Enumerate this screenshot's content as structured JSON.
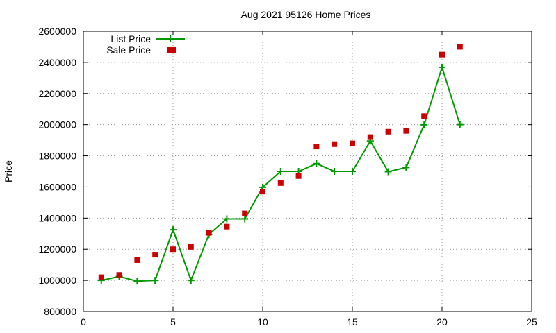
{
  "chart_data": {
    "type": "line",
    "title": "Aug 2021 95126 Home Prices",
    "xlabel": "",
    "ylabel": "Price",
    "xlim": [
      0,
      25
    ],
    "ylim": [
      800000,
      2600000
    ],
    "x_ticks": [
      0,
      5,
      10,
      15,
      20,
      25
    ],
    "y_ticks": [
      800000,
      1000000,
      1200000,
      1400000,
      1600000,
      1800000,
      2000000,
      2200000,
      2400000,
      2600000
    ],
    "grid": true,
    "legend_position": "top-left",
    "series": [
      {
        "name": "List Price",
        "style": "line-plus",
        "color": "#009900",
        "x": [
          1,
          2,
          3,
          4,
          5,
          6,
          7,
          8,
          9,
          10,
          11,
          12,
          13,
          14,
          15,
          16,
          17,
          18,
          19,
          20,
          21
        ],
        "values": [
          1000000,
          1025000,
          995000,
          1000000,
          1325000,
          1000000,
          1295000,
          1395000,
          1395000,
          1598000,
          1700000,
          1700000,
          1750000,
          1700000,
          1700000,
          1895000,
          1698000,
          1725000,
          1999000,
          2369000,
          2000000
        ]
      },
      {
        "name": "Sale Price",
        "style": "square-points",
        "color": "#cc0000",
        "x": [
          1,
          2,
          3,
          4,
          5,
          5,
          6,
          7,
          8,
          9,
          10,
          11,
          12,
          13,
          14,
          15,
          16,
          17,
          18,
          19,
          20,
          21
        ],
        "values": [
          1020000,
          1035000,
          1130000,
          1165000,
          2480000,
          1200000,
          1215000,
          1305000,
          1345000,
          1430000,
          1570000,
          1625000,
          1670000,
          1860000,
          1875000,
          1880000,
          1920000,
          1955000,
          1960000,
          2055000,
          2450000,
          2500000
        ]
      }
    ]
  }
}
